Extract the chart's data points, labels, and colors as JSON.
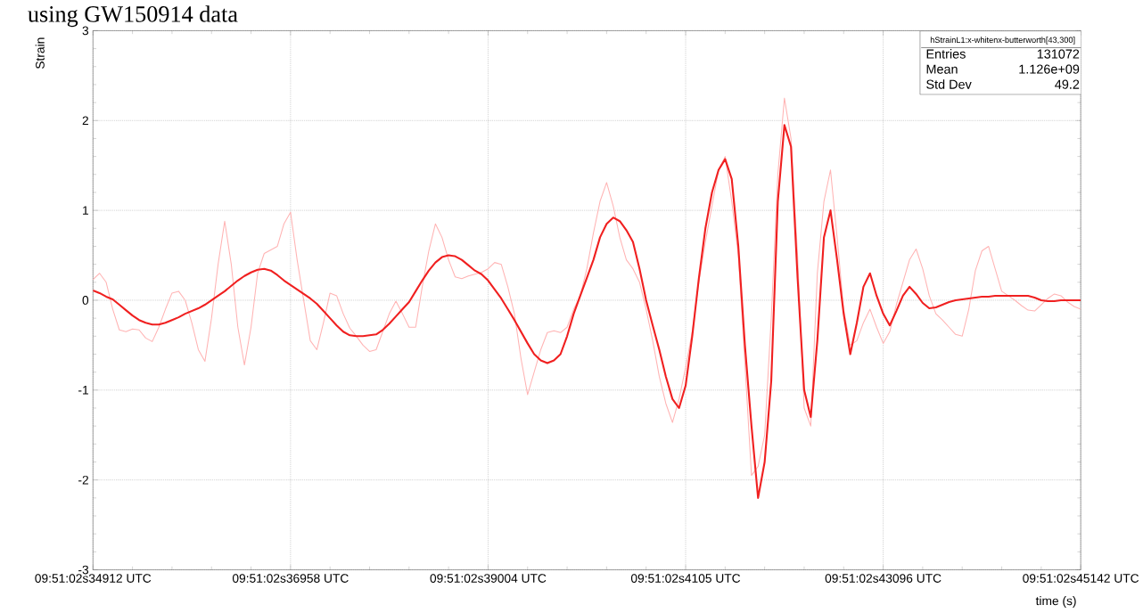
{
  "chart_data": {
    "type": "line",
    "title": "using GW150914 data",
    "xlabel": "time (s)",
    "ylabel": "Strain",
    "categories": [
      "09:51:02s34912 UTC",
      null,
      null,
      null,
      null,
      null,
      null,
      null,
      null,
      null,
      null,
      null,
      null,
      null,
      null,
      null,
      null,
      null,
      null,
      null,
      null,
      null,
      null,
      null,
      null,
      null,
      null,
      null,
      null,
      null,
      "09:51:02s36958 UTC",
      null,
      null,
      null,
      null,
      null,
      null,
      null,
      null,
      null,
      null,
      null,
      null,
      null,
      null,
      null,
      null,
      null,
      null,
      null,
      null,
      null,
      null,
      null,
      null,
      null,
      null,
      null,
      null,
      null,
      "09:51:02s39004 UTC",
      null,
      null,
      null,
      null,
      null,
      null,
      null,
      null,
      null,
      null,
      null,
      null,
      null,
      null,
      null,
      null,
      null,
      null,
      null,
      null,
      null,
      null,
      null,
      null,
      null,
      null,
      null,
      null,
      null,
      "09:51:02s4105 UTC",
      null,
      null,
      null,
      null,
      null,
      null,
      null,
      null,
      null,
      null,
      null,
      null,
      null,
      null,
      null,
      null,
      null,
      null,
      null,
      null,
      null,
      null,
      null,
      null,
      null,
      null,
      null,
      null,
      null,
      "09:51:02s43096 UTC",
      null,
      null,
      null,
      null,
      null,
      null,
      null,
      null,
      null,
      null,
      null,
      null,
      null,
      null,
      null,
      null,
      null,
      null,
      null,
      null,
      null,
      null,
      null,
      null,
      null,
      null,
      null,
      null,
      null,
      "09:51:02s45142 UTC"
    ],
    "ylim": [
      -3,
      3
    ],
    "yticks": [
      -3,
      -2,
      -1,
      0,
      1,
      2,
      3
    ],
    "grid": true,
    "marker": "none",
    "line_style": "solid",
    "annotations": [
      "hStrainL1:x-whitenx-butterworth[43,300]",
      "Entries",
      "131072",
      "Mean",
      "1.126e+09",
      "Std Dev",
      "49.2"
    ],
    "series": [
      {
        "color": "#ffb3b3",
        "values": [
          0.23,
          0.3,
          0.2,
          -0.1,
          -0.33,
          -0.35,
          -0.32,
          -0.33,
          -0.42,
          -0.46,
          -0.3,
          -0.1,
          0.08,
          0.1,
          0.0,
          -0.25,
          -0.55,
          -0.68,
          -0.2,
          0.4,
          0.88,
          0.4,
          -0.3,
          -0.72,
          -0.3,
          0.3,
          0.52,
          0.56,
          0.6,
          0.85,
          0.98,
          0.45,
          0.0,
          -0.45,
          -0.55,
          -0.25,
          0.08,
          0.05,
          -0.15,
          -0.31,
          -0.4,
          -0.5,
          -0.57,
          -0.55,
          -0.35,
          -0.15,
          -0.01,
          -0.15,
          -0.3,
          -0.3,
          0.15,
          0.55,
          0.85,
          0.7,
          0.45,
          0.26,
          0.24,
          0.27,
          0.29,
          0.31,
          0.35,
          0.42,
          0.4,
          0.15,
          -0.15,
          -0.65,
          -1.05,
          -0.8,
          -0.55,
          -0.36,
          -0.34,
          -0.36,
          -0.3,
          -0.1,
          0.05,
          0.35,
          0.75,
          1.1,
          1.31,
          1.05,
          0.7,
          0.45,
          0.35,
          0.2,
          -0.1,
          -0.45,
          -0.85,
          -1.15,
          -1.36,
          -1.1,
          -0.75,
          -0.35,
          0.2,
          0.65,
          1.05,
          1.45,
          1.6,
          1.1,
          0.5,
          -0.7,
          -1.95,
          -1.85,
          -1.5,
          -0.2,
          1.4,
          2.25,
          1.8,
          0.5,
          -1.2,
          -1.4,
          0.3,
          1.1,
          1.45,
          0.7,
          -0.1,
          -0.5,
          -0.45,
          -0.25,
          -0.1,
          -0.3,
          -0.48,
          -0.35,
          -0.05,
          0.2,
          0.45,
          0.57,
          0.35,
          0.05,
          -0.15,
          -0.22,
          -0.3,
          -0.38,
          -0.4,
          -0.1,
          0.33,
          0.55,
          0.6,
          0.35,
          0.1,
          0.05,
          0.0,
          -0.06,
          -0.11,
          -0.12,
          -0.05,
          0.02,
          0.07,
          0.05,
          -0.02,
          -0.07,
          -0.1
        ]
      },
      {
        "color": "#f02020",
        "values": [
          0.11,
          0.08,
          0.04,
          0.01,
          -0.05,
          -0.11,
          -0.17,
          -0.22,
          -0.25,
          -0.27,
          -0.27,
          -0.25,
          -0.22,
          -0.19,
          -0.15,
          -0.12,
          -0.09,
          -0.05,
          0.0,
          0.05,
          0.1,
          0.16,
          0.22,
          0.27,
          0.31,
          0.34,
          0.35,
          0.33,
          0.28,
          0.22,
          0.17,
          0.12,
          0.07,
          0.02,
          -0.04,
          -0.12,
          -0.2,
          -0.28,
          -0.35,
          -0.39,
          -0.4,
          -0.4,
          -0.39,
          -0.38,
          -0.33,
          -0.26,
          -0.18,
          -0.1,
          -0.02,
          0.1,
          0.22,
          0.33,
          0.42,
          0.48,
          0.5,
          0.49,
          0.45,
          0.39,
          0.33,
          0.29,
          0.22,
          0.12,
          0.02,
          -0.1,
          -0.22,
          -0.35,
          -0.48,
          -0.6,
          -0.67,
          -0.7,
          -0.67,
          -0.6,
          -0.4,
          -0.15,
          0.05,
          0.25,
          0.45,
          0.7,
          0.85,
          0.92,
          0.88,
          0.78,
          0.65,
          0.35,
          0.0,
          -0.28,
          -0.55,
          -0.85,
          -1.1,
          -1.2,
          -0.95,
          -0.4,
          0.24,
          0.8,
          1.2,
          1.45,
          1.57,
          1.35,
          0.6,
          -0.5,
          -1.4,
          -2.2,
          -1.8,
          -0.9,
          1.1,
          1.95,
          1.71,
          0.25,
          -1.0,
          -1.3,
          -0.45,
          0.7,
          1.0,
          0.45,
          -0.15,
          -0.6,
          -0.25,
          0.15,
          0.3,
          0.05,
          -0.15,
          -0.28,
          -0.12,
          0.05,
          0.15,
          0.07,
          -0.03,
          -0.09,
          -0.08,
          -0.05,
          -0.02,
          0.0,
          0.01,
          0.02,
          0.03,
          0.04,
          0.04,
          0.05,
          0.05,
          0.05,
          0.05,
          0.05,
          0.05,
          0.03,
          0.0,
          -0.01,
          -0.01,
          0.0,
          0.0,
          0.0,
          0.0
        ]
      }
    ]
  }
}
